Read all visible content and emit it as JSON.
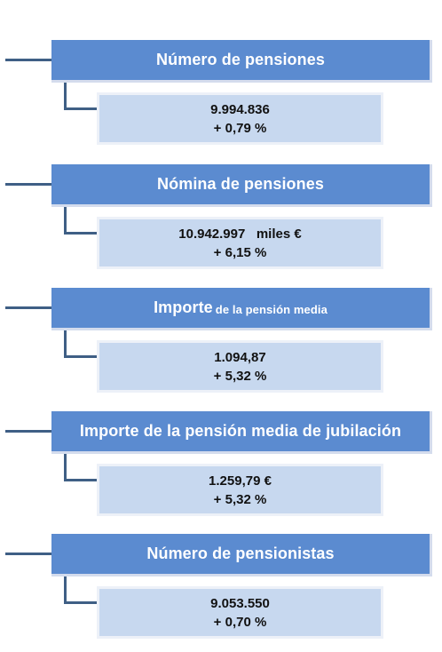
{
  "items": [
    {
      "title": "Número de pensiones",
      "title_suffix": "",
      "value": "9.994.836",
      "change": "+ 0,79 %"
    },
    {
      "title": "Nómina de pensiones",
      "title_suffix": "",
      "value": "10.942.997   miles €",
      "change": "+ 6,15 %"
    },
    {
      "title": "Importe",
      "title_suffix": "de la pensión media",
      "value": "1.094,87",
      "change": "+ 5,32 %"
    },
    {
      "title": "Importe de la pensión media de jubilación",
      "title_suffix": "",
      "value": "1.259,79 €",
      "change": "+ 5,32 %"
    },
    {
      "title": "Número de pensionistas",
      "title_suffix": "",
      "value": "9.053.550",
      "change": "+ 0,70 %"
    }
  ],
  "colors": {
    "header_fill": "#5b8bd0",
    "value_fill": "#c7d8ef",
    "connector": "#3f5f85"
  }
}
